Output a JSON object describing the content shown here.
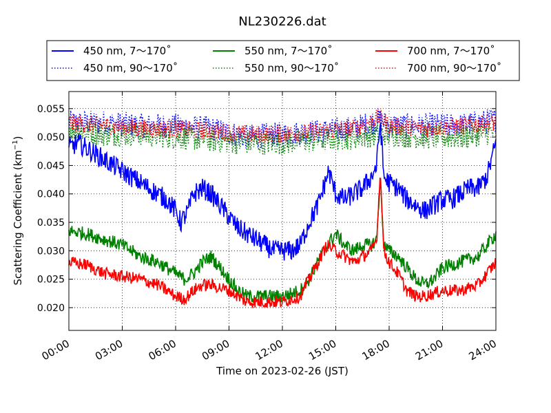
{
  "chart_data": {
    "type": "line",
    "title": "NL230226.dat",
    "xlabel": "Time on 2023-02-26 (JST)",
    "ylabel_main": "Scattering Coefficient (km",
    "ylabel_sup": "−1",
    "ylabel_close": ")",
    "xlim": [
      0,
      24
    ],
    "ylim": [
      0.016,
      0.058
    ],
    "x_ticks": [
      0,
      3,
      6,
      9,
      12,
      15,
      18,
      21,
      24
    ],
    "x_tick_labels": [
      "00:00",
      "03:00",
      "06:00",
      "09:00",
      "12:00",
      "15:00",
      "18:00",
      "21:00",
      "24:00"
    ],
    "y_ticks": [
      0.02,
      0.025,
      0.03,
      0.035,
      0.04,
      0.045,
      0.05,
      0.055
    ],
    "y_tick_labels": [
      "0.020",
      "0.025",
      "0.030",
      "0.035",
      "0.040",
      "0.045",
      "0.050",
      "0.055"
    ],
    "grid": true,
    "legend_placement": "top, above plot (3 columns)",
    "x_unit": "hours (JST)",
    "series": [
      {
        "name": "450 nm, 7～170˚",
        "color": "#0000ff",
        "style": "solid",
        "noise": 0.0018,
        "x": [
          0,
          0.5,
          1,
          1.5,
          2,
          2.5,
          3,
          3.5,
          4,
          4.5,
          5,
          5.5,
          6,
          6.3,
          6.7,
          7,
          7.5,
          8,
          8.5,
          9,
          9.5,
          10,
          10.5,
          11,
          11.5,
          12,
          12.5,
          13,
          13.5,
          14,
          14.3,
          14.6,
          15,
          15.5,
          16,
          16.5,
          17,
          17.3,
          17.5,
          17.7,
          18,
          18.5,
          19,
          19.5,
          20,
          20.5,
          21,
          21.5,
          22,
          22.5,
          23,
          23.5,
          24
        ],
        "y": [
          0.048,
          0.049,
          0.048,
          0.047,
          0.046,
          0.045,
          0.044,
          0.043,
          0.042,
          0.041,
          0.04,
          0.039,
          0.037,
          0.035,
          0.037,
          0.04,
          0.041,
          0.04,
          0.038,
          0.036,
          0.034,
          0.033,
          0.032,
          0.031,
          0.03,
          0.03,
          0.03,
          0.031,
          0.035,
          0.038,
          0.041,
          0.044,
          0.04,
          0.039,
          0.04,
          0.041,
          0.043,
          0.045,
          0.053,
          0.043,
          0.042,
          0.041,
          0.039,
          0.038,
          0.037,
          0.038,
          0.039,
          0.039,
          0.04,
          0.041,
          0.041,
          0.043,
          0.049
        ]
      },
      {
        "name": "450 nm, 90～170˚",
        "color": "#0000ff",
        "style": "dotted",
        "noise": 0.0022,
        "x": [
          0,
          2,
          4,
          6,
          8,
          10,
          12,
          14,
          16,
          17.5,
          18,
          20,
          22,
          24
        ],
        "y": [
          0.0525,
          0.0525,
          0.052,
          0.052,
          0.0515,
          0.05,
          0.0505,
          0.051,
          0.0515,
          0.053,
          0.052,
          0.052,
          0.052,
          0.053
        ]
      },
      {
        "name": "550 nm, 7～170˚",
        "color": "#008000",
        "style": "solid",
        "noise": 0.0012,
        "x": [
          0,
          1,
          2,
          3,
          4,
          5,
          6,
          6.5,
          7,
          7.5,
          8,
          8.5,
          9,
          9.5,
          10,
          11,
          12,
          13,
          13.5,
          14,
          14.5,
          15,
          15.5,
          16,
          16.5,
          17,
          17.3,
          17.5,
          17.7,
          18,
          18.5,
          19,
          19.5,
          20,
          20.5,
          21,
          22,
          23,
          24
        ],
        "y": [
          0.0335,
          0.033,
          0.032,
          0.031,
          0.029,
          0.028,
          0.026,
          0.025,
          0.026,
          0.028,
          0.029,
          0.027,
          0.025,
          0.023,
          0.022,
          0.022,
          0.022,
          0.023,
          0.025,
          0.028,
          0.031,
          0.033,
          0.031,
          0.03,
          0.031,
          0.031,
          0.032,
          0.043,
          0.031,
          0.03,
          0.029,
          0.027,
          0.025,
          0.024,
          0.025,
          0.027,
          0.028,
          0.029,
          0.033
        ]
      },
      {
        "name": "550 nm, 90～170˚",
        "color": "#008000",
        "style": "dotted",
        "noise": 0.0022,
        "x": [
          0,
          2,
          4,
          6,
          8,
          10,
          12,
          14,
          16,
          17.5,
          18,
          20,
          22,
          24
        ],
        "y": [
          0.0515,
          0.0505,
          0.0505,
          0.05,
          0.0495,
          0.049,
          0.049,
          0.0495,
          0.05,
          0.0505,
          0.0505,
          0.05,
          0.05,
          0.051
        ]
      },
      {
        "name": "700 nm, 7～170˚",
        "color": "#ff0000",
        "style": "solid",
        "noise": 0.0011,
        "x": [
          0,
          1,
          2,
          3,
          4,
          5,
          6,
          6.5,
          7,
          7.5,
          8,
          9,
          10,
          11,
          12,
          13,
          13.5,
          14,
          14.5,
          15,
          15.5,
          16,
          16.5,
          17,
          17.3,
          17.5,
          17.7,
          18,
          18.5,
          19,
          19.5,
          20,
          21,
          22,
          23,
          24
        ],
        "y": [
          0.028,
          0.0275,
          0.026,
          0.0255,
          0.025,
          0.024,
          0.022,
          0.0215,
          0.023,
          0.024,
          0.024,
          0.023,
          0.021,
          0.021,
          0.021,
          0.022,
          0.025,
          0.028,
          0.031,
          0.03,
          0.029,
          0.028,
          0.029,
          0.03,
          0.032,
          0.044,
          0.03,
          0.028,
          0.026,
          0.023,
          0.022,
          0.022,
          0.023,
          0.023,
          0.024,
          0.028
        ]
      },
      {
        "name": "700 nm, 90～170˚",
        "color": "#ff0000",
        "style": "dotted",
        "noise": 0.0016,
        "x": [
          0,
          2,
          4,
          6,
          8,
          10,
          12,
          14,
          16,
          17.5,
          18,
          20,
          22,
          24
        ],
        "y": [
          0.0525,
          0.052,
          0.0515,
          0.0515,
          0.051,
          0.0505,
          0.0505,
          0.051,
          0.0515,
          0.0535,
          0.052,
          0.0515,
          0.052,
          0.0525
        ]
      }
    ]
  }
}
